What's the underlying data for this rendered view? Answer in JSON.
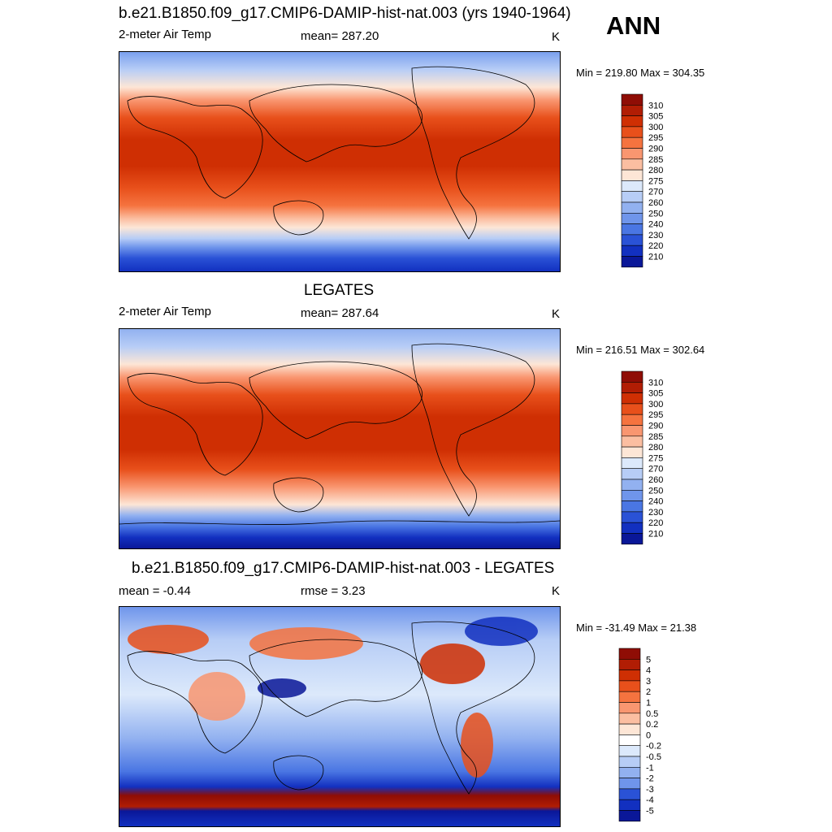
{
  "corner_label": "ANN",
  "panels": [
    {
      "title": "b.e21.B1850.f09_g17.CMIP6-DAMIP-hist-nat.003 (yrs 1940-1964)",
      "left_label": "2-meter Air Temp",
      "center_label": "mean= 287.20",
      "unit": "K",
      "minmax": "Min = 219.80 Max = 304.35",
      "colorbar": {
        "labels": [
          "310",
          "305",
          "300",
          "295",
          "290",
          "285",
          "280",
          "275",
          "270",
          "260",
          "250",
          "240",
          "230",
          "220",
          "210"
        ],
        "colors": [
          "#8f0d05",
          "#b11d04",
          "#cf2f03",
          "#e8501b",
          "#f5733f",
          "#f99670",
          "#fbbea1",
          "#fde6d6",
          "#dce9fb",
          "#b7cdf6",
          "#92b1f0",
          "#6f95eb",
          "#4a76e3",
          "#2a52d6",
          "#1230c0",
          "#0a1798"
        ]
      }
    },
    {
      "title": "LEGATES",
      "left_label": "2-meter Air Temp",
      "center_label": "mean= 287.64",
      "unit": "K",
      "minmax": "Min = 216.51 Max = 302.64",
      "colorbar": {
        "labels": [
          "310",
          "305",
          "300",
          "295",
          "290",
          "285",
          "280",
          "275",
          "270",
          "260",
          "250",
          "240",
          "230",
          "220",
          "210"
        ],
        "colors": [
          "#8f0d05",
          "#b11d04",
          "#cf2f03",
          "#e8501b",
          "#f5733f",
          "#f99670",
          "#fbbea1",
          "#fde6d6",
          "#dce9fb",
          "#b7cdf6",
          "#92b1f0",
          "#6f95eb",
          "#4a76e3",
          "#2a52d6",
          "#1230c0",
          "#0a1798"
        ]
      }
    },
    {
      "title": "b.e21.B1850.f09_g17.CMIP6-DAMIP-hist-nat.003 - LEGATES",
      "left_label": "mean =  -0.44",
      "center_label": "rmse =   3.23",
      "unit": "K",
      "minmax": "Min = -31.49 Max =  21.38",
      "colorbar": {
        "labels": [
          "5",
          "4",
          "3",
          "2",
          "1",
          "0.5",
          "0.2",
          "0",
          "-0.2",
          "-0.5",
          "-1",
          "-2",
          "-3",
          "-4",
          "-5"
        ],
        "colors": [
          "#8f0d05",
          "#b11d04",
          "#cf2f03",
          "#e8501b",
          "#f5733f",
          "#f99670",
          "#fbbea1",
          "#fde6d6",
          "#ffffff",
          "#dce9fb",
          "#b7cdf6",
          "#92b1f0",
          "#6f95eb",
          "#2a52d6",
          "#1230c0",
          "#0a1798"
        ]
      }
    }
  ]
}
